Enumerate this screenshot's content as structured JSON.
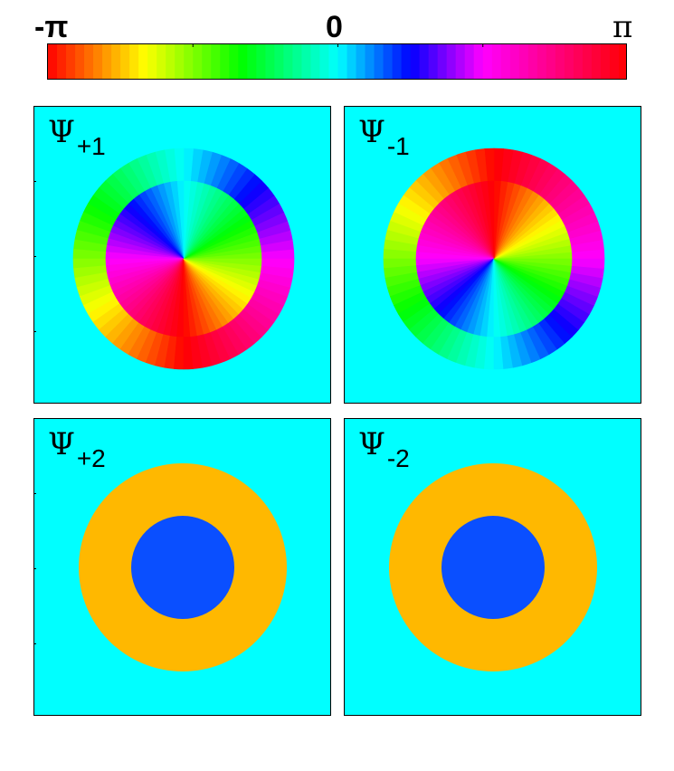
{
  "colorbar": {
    "label_left": "-π",
    "label_mid": "0",
    "label_right": "π",
    "range": [
      -3.14159,
      3.14159
    ]
  },
  "colors": {
    "background": "#00ffff",
    "ring_uniform": "#ffb800",
    "core_uniform": "#0a4fff"
  },
  "panels": [
    {
      "symbol": "Ψ",
      "subscript": "+1",
      "winding_core": 1,
      "winding_ring": -1,
      "uniform": false
    },
    {
      "symbol": "Ψ",
      "subscript": "-1",
      "winding_core": -1,
      "winding_ring": 1,
      "uniform": false
    },
    {
      "symbol": "Ψ",
      "subscript": "+2",
      "uniform": true
    },
    {
      "symbol": "Ψ",
      "subscript": "-2",
      "uniform": true
    }
  ]
}
